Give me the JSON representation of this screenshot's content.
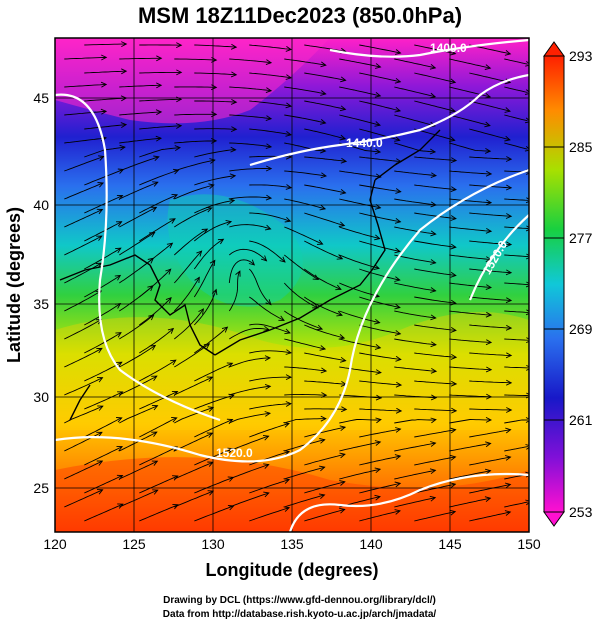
{
  "header": {
    "title": "MSM 18Z11Dec2023 (850.0hPa)"
  },
  "axes": {
    "xlabel": "Longitude (degrees)",
    "ylabel": "Latitude  (degrees)",
    "xticks": [
      "120",
      "125",
      "130",
      "135",
      "140",
      "145",
      "150"
    ],
    "yticks": [
      "25",
      "30",
      "35",
      "40",
      "45"
    ]
  },
  "colorbar": {
    "labels": [
      "293",
      "285",
      "277",
      "269",
      "261",
      "253"
    ],
    "colors": [
      "#ff2000",
      "#ff8c00",
      "#ffd700",
      "#a8e000",
      "#18d040",
      "#10c8d8",
      "#2060e8",
      "#1818c8",
      "#8010d8",
      "#ff10d0"
    ]
  },
  "contours": {
    "labels": [
      "1400.0",
      "1440.0",
      "1520.0",
      "1520.0"
    ]
  },
  "credits": {
    "line1": "Drawing by DCL (https://www.gfd-dennou.org/library/dcl/)",
    "line2": "Data from http://database.rish.kyoto-u.ac.jp/arch/jmadata/"
  }
}
